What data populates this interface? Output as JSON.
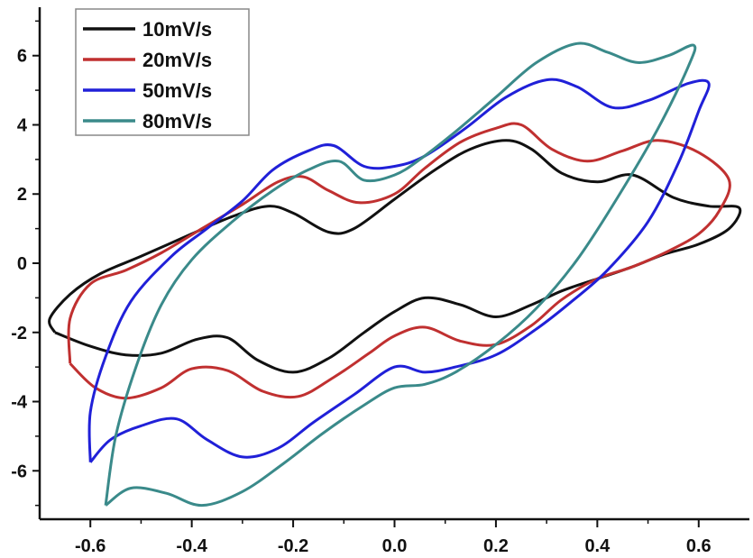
{
  "chart_data": {
    "type": "line",
    "title": "",
    "xlabel": "",
    "ylabel": "",
    "xlim": [
      -0.7,
      0.7
    ],
    "ylim": [
      -7.4,
      7.4
    ],
    "xticks": [
      -0.6,
      -0.4,
      -0.2,
      0.0,
      0.2,
      0.4,
      0.6
    ],
    "xtick_labels": [
      "-0.6",
      "-0.4",
      "-0.2",
      "0.0",
      "0.2",
      "0.4",
      "0.6"
    ],
    "yticks": [
      -6,
      -4,
      -2,
      0,
      2,
      4,
      6
    ],
    "ytick_labels": [
      "-6",
      "-4",
      "-2",
      "0",
      "2",
      "4",
      "6"
    ],
    "grid": false,
    "legend_position": "top-left",
    "series": [
      {
        "name": "10mV/s",
        "color": "#111111",
        "points": [
          [
            -0.67,
            -2.0
          ],
          [
            -0.6,
            -2.4
          ],
          [
            -0.53,
            -2.65
          ],
          [
            -0.46,
            -2.6
          ],
          [
            -0.39,
            -2.2
          ],
          [
            -0.33,
            -2.15
          ],
          [
            -0.27,
            -2.8
          ],
          [
            -0.2,
            -3.15
          ],
          [
            -0.13,
            -2.75
          ],
          [
            -0.06,
            -2.0
          ],
          [
            0.0,
            -1.4
          ],
          [
            0.06,
            -1.0
          ],
          [
            0.13,
            -1.2
          ],
          [
            0.2,
            -1.55
          ],
          [
            0.27,
            -1.2
          ],
          [
            0.33,
            -0.8
          ],
          [
            0.4,
            -0.45
          ],
          [
            0.47,
            -0.1
          ],
          [
            0.53,
            0.25
          ],
          [
            0.6,
            0.55
          ],
          [
            0.66,
            1.0
          ],
          [
            0.68,
            1.6
          ],
          [
            0.62,
            1.65
          ],
          [
            0.55,
            1.9
          ],
          [
            0.47,
            2.55
          ],
          [
            0.4,
            2.35
          ],
          [
            0.33,
            2.6
          ],
          [
            0.27,
            3.3
          ],
          [
            0.22,
            3.55
          ],
          [
            0.15,
            3.3
          ],
          [
            0.08,
            2.7
          ],
          [
            0.0,
            1.85
          ],
          [
            -0.08,
            1.0
          ],
          [
            -0.13,
            0.9
          ],
          [
            -0.2,
            1.45
          ],
          [
            -0.25,
            1.65
          ],
          [
            -0.32,
            1.35
          ],
          [
            -0.4,
            0.85
          ],
          [
            -0.5,
            0.2
          ],
          [
            -0.58,
            -0.3
          ],
          [
            -0.64,
            -0.9
          ],
          [
            -0.68,
            -1.6
          ],
          [
            -0.67,
            -2.0
          ]
        ]
      },
      {
        "name": "20mV/s",
        "color": "#c03030",
        "points": [
          [
            -0.64,
            -2.9
          ],
          [
            -0.59,
            -3.6
          ],
          [
            -0.53,
            -3.9
          ],
          [
            -0.46,
            -3.6
          ],
          [
            -0.4,
            -3.05
          ],
          [
            -0.33,
            -3.1
          ],
          [
            -0.26,
            -3.7
          ],
          [
            -0.19,
            -3.85
          ],
          [
            -0.12,
            -3.3
          ],
          [
            -0.05,
            -2.6
          ],
          [
            0.0,
            -2.1
          ],
          [
            0.06,
            -1.85
          ],
          [
            0.13,
            -2.25
          ],
          [
            0.2,
            -2.35
          ],
          [
            0.27,
            -1.8
          ],
          [
            0.33,
            -1.05
          ],
          [
            0.4,
            -0.45
          ],
          [
            0.47,
            -0.1
          ],
          [
            0.54,
            0.35
          ],
          [
            0.6,
            0.85
          ],
          [
            0.64,
            1.5
          ],
          [
            0.66,
            2.4
          ],
          [
            0.6,
            3.2
          ],
          [
            0.52,
            3.55
          ],
          [
            0.45,
            3.25
          ],
          [
            0.38,
            2.95
          ],
          [
            0.31,
            3.3
          ],
          [
            0.25,
            4.0
          ],
          [
            0.2,
            3.9
          ],
          [
            0.13,
            3.5
          ],
          [
            0.06,
            2.75
          ],
          [
            0.0,
            2.0
          ],
          [
            -0.07,
            1.75
          ],
          [
            -0.13,
            2.1
          ],
          [
            -0.18,
            2.5
          ],
          [
            -0.23,
            2.35
          ],
          [
            -0.3,
            1.7
          ],
          [
            -0.38,
            1.0
          ],
          [
            -0.46,
            0.3
          ],
          [
            -0.53,
            -0.2
          ],
          [
            -0.6,
            -0.6
          ],
          [
            -0.64,
            -1.6
          ],
          [
            -0.64,
            -2.9
          ]
        ]
      },
      {
        "name": "50mV/s",
        "color": "#2020d8",
        "points": [
          [
            -0.6,
            -5.75
          ],
          [
            -0.56,
            -5.1
          ],
          [
            -0.5,
            -4.7
          ],
          [
            -0.43,
            -4.5
          ],
          [
            -0.37,
            -5.1
          ],
          [
            -0.3,
            -5.6
          ],
          [
            -0.23,
            -5.35
          ],
          [
            -0.16,
            -4.6
          ],
          [
            -0.08,
            -3.8
          ],
          [
            0.0,
            -3.0
          ],
          [
            0.06,
            -3.15
          ],
          [
            0.12,
            -3.0
          ],
          [
            0.2,
            -2.65
          ],
          [
            0.28,
            -1.9
          ],
          [
            0.35,
            -1.1
          ],
          [
            0.42,
            -0.2
          ],
          [
            0.5,
            1.2
          ],
          [
            0.56,
            2.9
          ],
          [
            0.6,
            4.4
          ],
          [
            0.62,
            5.2
          ],
          [
            0.58,
            5.2
          ],
          [
            0.5,
            4.7
          ],
          [
            0.43,
            4.5
          ],
          [
            0.36,
            5.1
          ],
          [
            0.3,
            5.3
          ],
          [
            0.22,
            4.8
          ],
          [
            0.14,
            3.9
          ],
          [
            0.06,
            3.1
          ],
          [
            0.0,
            2.8
          ],
          [
            -0.06,
            2.8
          ],
          [
            -0.12,
            3.4
          ],
          [
            -0.17,
            3.25
          ],
          [
            -0.24,
            2.7
          ],
          [
            -0.3,
            1.8
          ],
          [
            -0.37,
            1.0
          ],
          [
            -0.44,
            0.2
          ],
          [
            -0.52,
            -1.1
          ],
          [
            -0.57,
            -2.7
          ],
          [
            -0.6,
            -4.3
          ],
          [
            -0.6,
            -5.75
          ]
        ]
      },
      {
        "name": "80mV/s",
        "color": "#3a8a8a",
        "points": [
          [
            -0.57,
            -7.0
          ],
          [
            -0.52,
            -6.5
          ],
          [
            -0.45,
            -6.65
          ],
          [
            -0.38,
            -7.0
          ],
          [
            -0.3,
            -6.6
          ],
          [
            -0.22,
            -5.8
          ],
          [
            -0.14,
            -4.9
          ],
          [
            -0.06,
            -4.1
          ],
          [
            0.0,
            -3.6
          ],
          [
            0.06,
            -3.5
          ],
          [
            0.12,
            -3.15
          ],
          [
            0.2,
            -2.35
          ],
          [
            0.28,
            -1.3
          ],
          [
            0.36,
            0.1
          ],
          [
            0.44,
            1.9
          ],
          [
            0.52,
            3.9
          ],
          [
            0.58,
            5.7
          ],
          [
            0.59,
            6.3
          ],
          [
            0.54,
            6.0
          ],
          [
            0.48,
            5.8
          ],
          [
            0.42,
            6.1
          ],
          [
            0.36,
            6.35
          ],
          [
            0.28,
            5.8
          ],
          [
            0.2,
            4.8
          ],
          [
            0.12,
            3.8
          ],
          [
            0.05,
            3.0
          ],
          [
            0.0,
            2.55
          ],
          [
            -0.06,
            2.4
          ],
          [
            -0.11,
            2.95
          ],
          [
            -0.17,
            2.7
          ],
          [
            -0.24,
            2.1
          ],
          [
            -0.32,
            1.2
          ],
          [
            -0.4,
            0.1
          ],
          [
            -0.46,
            -1.2
          ],
          [
            -0.51,
            -3.0
          ],
          [
            -0.55,
            -5.0
          ],
          [
            -0.57,
            -7.0
          ]
        ]
      }
    ]
  }
}
